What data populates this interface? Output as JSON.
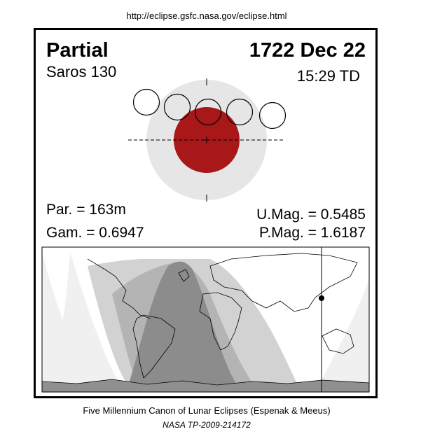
{
  "header": {
    "url": "http://eclipse.gsfc.nasa.gov/eclipse.html"
  },
  "eclipse": {
    "type": "Partial",
    "date": "1722 Dec 22",
    "saros": "Saros 130",
    "time": "15:29 TD",
    "parameters": {
      "duration": "Par. = 163m",
      "gamma": "Gam. = 0.6947",
      "umbral_mag": "U.Mag. = 0.5485",
      "penumbral_mag": "P.Mag. = 1.6187"
    }
  },
  "footer": {
    "line1": "Five Millennium Canon of Lunar Eclipses (Espenak & Meeus)",
    "line2": "NASA TP-2009-214172"
  }
}
